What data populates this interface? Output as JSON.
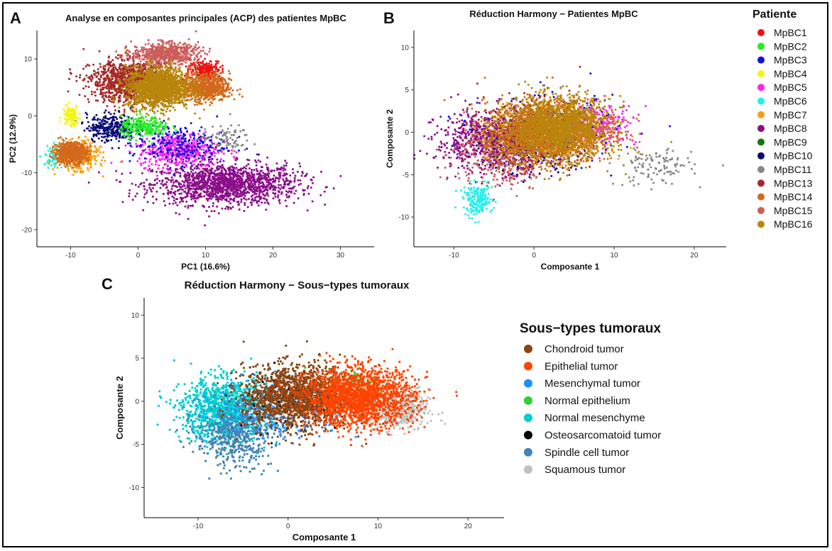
{
  "panels": {
    "A": "A",
    "B": "B",
    "C": "C"
  },
  "chart_data": [
    {
      "type": "scatter",
      "id": "A",
      "title": "Analyse en composantes principales (ACP) des patientes MpBC",
      "xlabel": "PC1 (16.6%)",
      "ylabel": "PC2 (12.9%)",
      "xlim": [
        -15,
        35
      ],
      "ylim": [
        -23,
        15
      ],
      "xticks": [
        -10,
        0,
        10,
        20,
        30
      ],
      "yticks": [
        -20,
        -10,
        0,
        10
      ],
      "grid": false,
      "legend": {
        "title": "Patiente",
        "placement": "right",
        "entries": [
          "MpBC1",
          "MpBC2",
          "MpBC3",
          "MpBC4",
          "MpBC5",
          "MpBC6",
          "MpBC7",
          "MpBC8",
          "MpBC9",
          "MpBC10",
          "MpBC11",
          "MpBC13",
          "MpBC14",
          "MpBC15",
          "MpBC16"
        ],
        "colors": [
          "#ee1111",
          "#22ee22",
          "#1111dd",
          "#f5f511",
          "#ff22ee",
          "#22f0f0",
          "#f5a011",
          "#8b0f8b",
          "#117711",
          "#0b0b77",
          "#888888",
          "#a52a2a",
          "#d2691e",
          "#cd5c5c",
          "#b8860b"
        ]
      },
      "clusters": [
        {
          "name": "MpBC8",
          "cx": 13,
          "cy": -12,
          "sx": 9,
          "sy": 3,
          "n": 1500
        },
        {
          "name": "MpBC5",
          "cx": 6,
          "cy": -6,
          "sx": 5,
          "sy": 2.5,
          "n": 500
        },
        {
          "name": "MpBC3",
          "cx": 6,
          "cy": -5,
          "sx": 6,
          "sy": 3,
          "n": 250
        },
        {
          "name": "MpBC11",
          "cx": 13,
          "cy": -4,
          "sx": 3,
          "sy": 2,
          "n": 80
        },
        {
          "name": "MpBC10",
          "cx": -4,
          "cy": -2,
          "sx": 3,
          "sy": 2,
          "n": 300
        },
        {
          "name": "MpBC2",
          "cx": 1,
          "cy": -2,
          "sx": 3,
          "sy": 1.5,
          "n": 250
        },
        {
          "name": "MpBC4",
          "cx": -10,
          "cy": 0,
          "sx": 1,
          "sy": 1.5,
          "n": 120
        },
        {
          "name": "MpBC6",
          "cx": -12,
          "cy": -7,
          "sx": 1.5,
          "sy": 1.5,
          "n": 120
        },
        {
          "name": "MpBC7",
          "cx": -9,
          "cy": -7,
          "sx": 2.5,
          "sy": 2,
          "n": 500
        },
        {
          "name": "MpBC14",
          "cx": -10,
          "cy": -6.5,
          "sx": 2,
          "sy": 1.5,
          "n": 600
        },
        {
          "name": "MpBC1",
          "cx": 10,
          "cy": 8,
          "sx": 2,
          "sy": 1.5,
          "n": 250
        },
        {
          "name": "MpBC13",
          "cx": -1,
          "cy": 6,
          "sx": 5,
          "sy": 3,
          "n": 1200
        },
        {
          "name": "MpBC15",
          "cx": 4,
          "cy": 11,
          "sx": 4,
          "sy": 1.5,
          "n": 600
        },
        {
          "name": "MpBC14",
          "cx": 10,
          "cy": 5,
          "sx": 3,
          "sy": 2,
          "n": 700
        },
        {
          "name": "MpBC16",
          "cx": 3,
          "cy": 5,
          "sx": 4,
          "sy": 3,
          "n": 1600
        }
      ]
    },
    {
      "type": "scatter",
      "id": "B",
      "title": "Réduction Harmony − Patientes MpBC",
      "xlabel": "Composante 1",
      "ylabel": "Composante 2",
      "xlim": [
        -15,
        24
      ],
      "ylim": [
        -13.5,
        12
      ],
      "xticks": [
        -10,
        0,
        10,
        20
      ],
      "yticks": [
        -10,
        -5,
        0,
        5,
        10
      ],
      "grid": false,
      "clusters": [
        {
          "name": "MpBC8",
          "cx": -5,
          "cy": -1,
          "sx": 6,
          "sy": 3,
          "n": 900
        },
        {
          "name": "MpBC5",
          "cx": 8,
          "cy": 1,
          "sx": 4,
          "sy": 2,
          "n": 300
        },
        {
          "name": "MpBC3",
          "cx": 2,
          "cy": 0,
          "sx": 7,
          "sy": 3.5,
          "n": 300
        },
        {
          "name": "MpBC11",
          "cx": 15,
          "cy": -4,
          "sx": 4,
          "sy": 2,
          "n": 120
        },
        {
          "name": "MpBC10",
          "cx": -1,
          "cy": -2,
          "sx": 5,
          "sy": 2.5,
          "n": 200
        },
        {
          "name": "MpBC6",
          "cx": -7,
          "cy": -8,
          "sx": 1.5,
          "sy": 1.5,
          "n": 200
        },
        {
          "name": "MpBC15",
          "cx": -4,
          "cy": -3,
          "sx": 5,
          "sy": 3,
          "n": 300
        },
        {
          "name": "MpBC13",
          "cx": 0,
          "cy": 0,
          "sx": 5,
          "sy": 3,
          "n": 500
        },
        {
          "name": "MpBC7",
          "cx": 2,
          "cy": 0,
          "sx": 6,
          "sy": 3,
          "n": 600
        },
        {
          "name": "MpBC14",
          "cx": 1,
          "cy": 0,
          "sx": 6,
          "sy": 3,
          "n": 1200
        },
        {
          "name": "MpBC16",
          "cx": 3,
          "cy": 0.5,
          "sx": 5.5,
          "sy": 3,
          "n": 1800
        }
      ]
    },
    {
      "type": "scatter",
      "id": "C",
      "title": "Réduction Harmony − Sous−types tumoraux",
      "xlabel": "Composante 1",
      "ylabel": "Composante 2",
      "xlim": [
        -16,
        24
      ],
      "ylim": [
        -13.5,
        12
      ],
      "xticks": [
        -10,
        0,
        10,
        20
      ],
      "yticks": [
        -10,
        -5,
        0,
        5,
        10
      ],
      "grid": false,
      "legend": {
        "title": "Sous−types tumoraux",
        "placement": "right",
        "entries": [
          "Chondroid tumor",
          "Epithelial tumor",
          "Mesenchymal tumor",
          "Normal epithelium",
          "Normal mesenchyme",
          "Osteosarcomatoid tumor",
          "Spindle cell tumor",
          "Squamous tumor"
        ],
        "colors": [
          "#8b4513",
          "#ff4500",
          "#1e90ff",
          "#32cd32",
          "#00ced1",
          "#000000",
          "#4682b4",
          "#c0c0c0"
        ]
      },
      "clusters": [
        {
          "name": "Normal mesenchyme",
          "cx": -7,
          "cy": -1,
          "sx": 4,
          "sy": 3,
          "n": 1200
        },
        {
          "name": "Spindle cell tumor",
          "cx": -6,
          "cy": -4,
          "sx": 3.5,
          "sy": 3,
          "n": 500
        },
        {
          "name": "Mesenchymal tumor",
          "cx": -1,
          "cy": -1,
          "sx": 6,
          "sy": 3,
          "n": 300
        },
        {
          "name": "Squamous tumor",
          "cx": 12,
          "cy": -1,
          "sx": 3,
          "sy": 2,
          "n": 450
        },
        {
          "name": "Normal epithelium",
          "cx": 8,
          "cy": 2,
          "sx": 3,
          "sy": 1.5,
          "n": 80
        },
        {
          "name": "Osteosarcomatoid tumor",
          "cx": 0,
          "cy": 0,
          "sx": 5,
          "sy": 3,
          "n": 100
        },
        {
          "name": "Chondroid tumor",
          "cx": 1,
          "cy": 0.5,
          "sx": 5,
          "sy": 3,
          "n": 1600
        },
        {
          "name": "Epithelial tumor",
          "cx": 8,
          "cy": 0.5,
          "sx": 5,
          "sy": 2.8,
          "n": 1800
        }
      ]
    }
  ]
}
